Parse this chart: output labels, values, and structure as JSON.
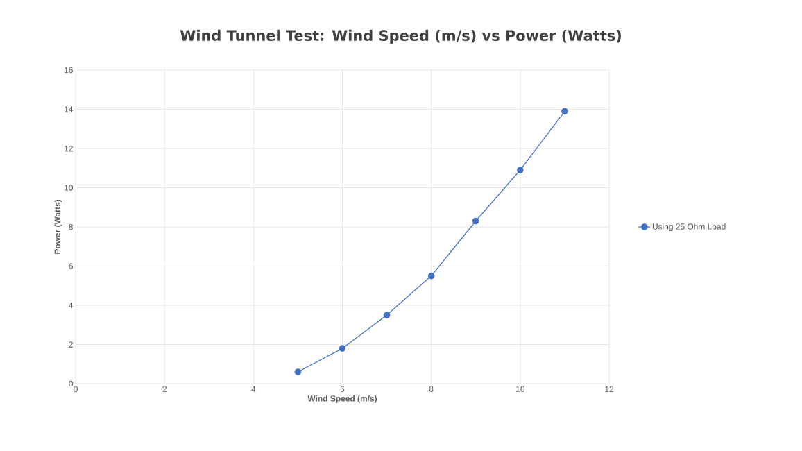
{
  "chart_data": {
    "type": "line",
    "title": "Wind Tunnel Test: Wind Speed (m/s) vs Power (Watts)",
    "xlabel": "Wind Speed (m/s)",
    "ylabel": "Power (Watts)",
    "x": [
      5,
      6,
      7,
      8,
      9,
      10,
      11
    ],
    "series": [
      {
        "name": "Using 25 Ohm Load",
        "color": "#4472c4",
        "values": [
          0.6,
          1.8,
          3.5,
          5.5,
          8.3,
          10.9,
          13.9
        ]
      }
    ],
    "xlim": [
      0,
      12
    ],
    "xticks": [
      0,
      2,
      4,
      6,
      8,
      10,
      12
    ],
    "ylim": [
      0,
      16
    ],
    "yticks": [
      0,
      2,
      4,
      6,
      8,
      10,
      12,
      14,
      16
    ],
    "grid": true,
    "legend": "right",
    "marker": "circle",
    "line_style": "solid"
  }
}
